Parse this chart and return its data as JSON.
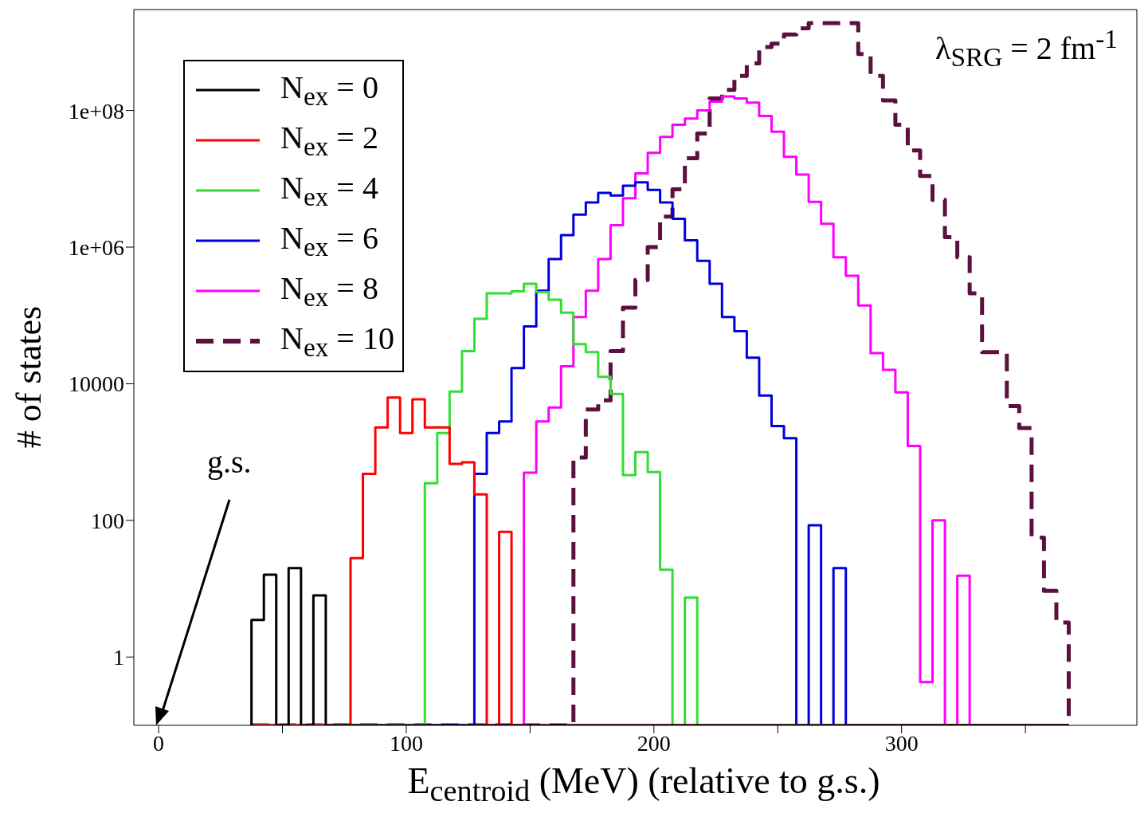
{
  "chart_data": {
    "type": "histogram",
    "xlabel": "E$_{centroid}$ (MeV) (relative to g.s.)",
    "ylabel": "# of states",
    "log": true,
    "legend": "top left",
    "xlim": [
      -10,
      395
    ],
    "xticks": [
      0,
      {
        "value": 50,
        "label": null
      },
      100,
      {
        "value": 150,
        "label": null
      },
      200,
      {
        "value": 250,
        "label": null
      },
      300,
      {
        "value": 350,
        "label": null
      }
    ],
    "ylim": [
      0.1,
      3000000000
    ],
    "yticks": [
      1,
      100,
      10000,
      {
        "value": 1000000,
        "label": "1e+06"
      },
      {
        "value": 100000000,
        "label": "1e+08"
      }
    ],
    "annotations": [
      "λ$_{SRG}$ = 2 fm$^{-1}$",
      "g.s."
    ],
    "bins": [
      37.5,
      42.5,
      47.5,
      52.5,
      57.5,
      62.5,
      67.5,
      72.5,
      77.5,
      82.5,
      87.5,
      92.5,
      97.5,
      102.5,
      107.5,
      112.5,
      117.5,
      122.5,
      127.5,
      132.5,
      137.5,
      142.5,
      147.5,
      152.5,
      157.5,
      162.5,
      167.5,
      172.5,
      177.5,
      182.5,
      187.5,
      192.5,
      197.5,
      202.5,
      207.5,
      212.5,
      217.5,
      222.5,
      227.5,
      232.5,
      237.5,
      242.5,
      247.5,
      252.5,
      257.5,
      262.5,
      267.5,
      272.5,
      277.5,
      282.5,
      287.5,
      292.5,
      297.5,
      302.5,
      307.5,
      312.5,
      317.5,
      322.5,
      327.5,
      332.5,
      337.5,
      342.5,
      347.5,
      352.5,
      357.5,
      362.5,
      367.5
    ],
    "series": [
      {
        "name": "N$_{ex}$ = 0",
        "color": "#000000",
        "values": [
          3.5,
          16,
          null,
          20,
          null,
          8,
          null,
          null,
          null,
          null,
          null,
          null,
          null,
          null,
          null,
          null,
          null,
          null,
          null,
          null,
          null,
          null,
          null,
          null,
          null,
          null,
          null,
          null,
          null,
          null,
          null,
          null,
          null,
          null,
          null,
          null,
          null,
          null,
          null,
          null,
          null,
          null,
          null,
          null,
          null,
          null,
          null,
          null,
          null,
          null,
          null,
          null,
          null,
          null,
          null,
          null,
          null,
          null,
          null,
          null,
          null,
          null,
          null,
          null,
          null,
          null
        ]
      },
      {
        "name": "N$_{ex}$ = 2",
        "color": "#ff0000",
        "values": [
          null,
          null,
          null,
          null,
          null,
          null,
          null,
          null,
          28,
          480,
          2300,
          6300,
          1900,
          5900,
          2300,
          2300,
          670,
          710,
          240,
          null,
          68,
          null,
          null,
          null,
          null,
          null,
          null,
          null,
          null,
          null,
          null,
          null,
          null,
          null,
          null,
          null,
          null,
          null,
          null,
          null,
          null,
          null,
          null,
          null,
          null,
          null,
          null,
          null,
          null,
          null,
          null,
          null,
          null,
          null,
          null,
          null,
          null,
          null,
          null,
          null,
          null,
          null,
          null,
          null,
          null,
          null
        ]
      },
      {
        "name": "N$_{ex}$ = 4",
        "color": "#33dd33",
        "values": [
          null,
          null,
          null,
          null,
          null,
          null,
          null,
          null,
          null,
          null,
          null,
          null,
          null,
          null,
          350,
          1900,
          7700,
          30000,
          89000,
          210000,
          210000,
          225000,
          290000,
          220000,
          170000,
          110000,
          38000,
          29000,
          12600,
          7100,
          460,
          1000,
          510,
          19,
          null,
          7.4,
          null,
          null,
          null,
          null,
          null,
          null,
          null,
          null,
          null,
          null,
          null,
          null,
          null,
          null,
          null,
          null,
          null,
          null,
          null,
          null,
          null,
          null,
          null,
          null,
          null,
          null,
          null,
          null,
          null,
          null
        ]
      },
      {
        "name": "N$_{ex}$ = 6",
        "color": "#0000dd",
        "values": [
          null,
          null,
          null,
          null,
          null,
          null,
          null,
          null,
          null,
          null,
          null,
          null,
          null,
          null,
          null,
          null,
          null,
          null,
          480,
          1900,
          2800,
          17000,
          69000,
          230000,
          670000,
          1500000,
          3000000,
          4500000,
          6200000,
          5700000,
          7900000,
          8900000,
          6900000,
          4500000,
          2600000,
          1260000,
          630000,
          290000,
          95000,
          59000,
          24000,
          6700,
          2400,
          1600,
          null,
          85,
          null,
          20,
          null,
          null,
          null,
          null,
          null,
          null,
          null,
          null,
          null,
          null,
          null,
          null,
          null,
          null,
          null,
          null,
          null,
          null
        ]
      },
      {
        "name": "N$_{ex}$ = 8",
        "color": "#ff00ff",
        "values": [
          null,
          null,
          null,
          null,
          null,
          null,
          null,
          null,
          null,
          null,
          null,
          null,
          null,
          null,
          null,
          null,
          null,
          null,
          null,
          null,
          null,
          null,
          500,
          2800,
          4500,
          18000,
          95000,
          230000,
          670000,
          2100000,
          5200000,
          12000000,
          24000000,
          41000000,
          62000000,
          76000000,
          100000000,
          135000000,
          160000000,
          150000000,
          130000000,
          83000000,
          49000000,
          21000000,
          11500000,
          4600000,
          2200000,
          710000,
          380000,
          140000,
          28000,
          16000,
          7500,
          1230,
          0.43,
          100,
          null,
          15.5,
          null,
          null,
          null,
          null,
          null,
          null,
          null,
          null
        ]
      },
      {
        "name": "N$_{ex}$ = 10",
        "color": "#5c1040",
        "line_style": "dashed",
        "values": [
          null,
          null,
          null,
          null,
          null,
          null,
          null,
          null,
          null,
          null,
          null,
          null,
          null,
          null,
          null,
          null,
          null,
          null,
          null,
          null,
          null,
          null,
          null,
          null,
          null,
          null,
          830,
          4200,
          5700,
          30000,
          130000,
          330000,
          1000000,
          2800000,
          7000000,
          20000000,
          46000000,
          150000000,
          200000000,
          320000000,
          490000000,
          850000000,
          950000000,
          1300000000,
          1600000000,
          1900000000,
          1900000000,
          1900000000,
          1900000000,
          670000000,
          320000000,
          140000000,
          62000000,
          26000000,
          11000000,
          4900000,
          1400000,
          710000,
          210000,
          29000,
          29000,
          4700,
          2250,
          56,
          9.3,
          3.2
        ]
      }
    ]
  }
}
